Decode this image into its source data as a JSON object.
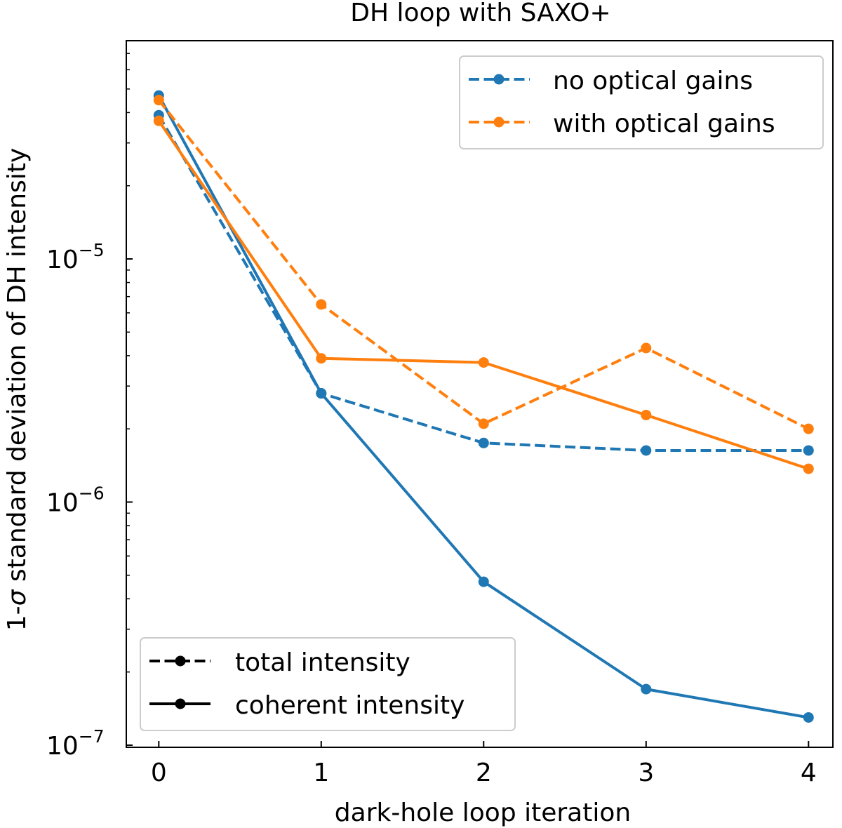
{
  "chart_data": {
    "type": "line",
    "title": "DH loop with SAXO+",
    "xlabel": "dark-hole loop iteration",
    "ylabel_prefix": "1-",
    "ylabel_sigma": "σ",
    "ylabel_suffix": " standard deviation of DH intensity",
    "yscale": "log",
    "x": [
      0,
      1,
      2,
      3,
      4
    ],
    "xlim": [
      -0.2,
      4.15
    ],
    "ylim": [
      9.8e-08,
      7.9e-05
    ],
    "xticks": [
      "0",
      "1",
      "2",
      "3",
      "4"
    ],
    "yticks": [
      {
        "value": 1e-05,
        "base": "10",
        "exp": "−5"
      },
      {
        "value": 1e-06,
        "base": "10",
        "exp": "−6"
      },
      {
        "value": 1e-07,
        "base": "10",
        "exp": "−7"
      }
    ],
    "series": [
      {
        "name": "no optical gains",
        "intensity": "total intensity",
        "color": "#1f77b4",
        "dashed": true,
        "values": [
          3.9e-05,
          2.8e-06,
          1.75e-06,
          1.63e-06,
          1.63e-06
        ]
      },
      {
        "name": "no optical gains",
        "intensity": "coherent intensity",
        "color": "#1f77b4",
        "dashed": false,
        "values": [
          4.7e-05,
          2.8e-06,
          4.7e-07,
          1.7e-07,
          1.3e-07
        ]
      },
      {
        "name": "with optical gains",
        "intensity": "total intensity",
        "color": "#ff7f0e",
        "dashed": true,
        "values": [
          4.5e-05,
          6.5e-06,
          2.1e-06,
          4.3e-06,
          2e-06
        ]
      },
      {
        "name": "with optical gains",
        "intensity": "coherent intensity",
        "color": "#ff7f0e",
        "dashed": false,
        "values": [
          3.7e-05,
          3.9e-06,
          3.75e-06,
          2.28e-06,
          1.37e-06
        ]
      }
    ],
    "legend_colors": {
      "position": "top-right",
      "entries": [
        {
          "label": "no optical gains",
          "color": "#1f77b4"
        },
        {
          "label": "with optical gains",
          "color": "#ff7f0e"
        }
      ]
    },
    "legend_styles": {
      "position": "bottom-left",
      "entries": [
        {
          "label": "total intensity",
          "dashed": true,
          "color": "#000000"
        },
        {
          "label": "coherent intensity",
          "dashed": false,
          "color": "#000000"
        }
      ]
    }
  }
}
